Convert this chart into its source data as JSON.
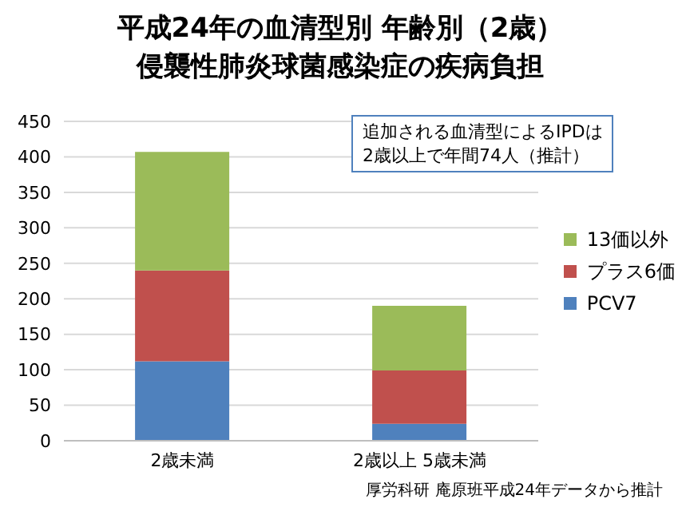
{
  "chart_data": {
    "type": "bar",
    "title": "平成24年の血清型別 年齢別（2歳）侵襲性肺炎球菌感染症の疾病負担",
    "categories": [
      "2歳未満",
      "2歳以上 5歳未満"
    ],
    "stacked": true,
    "series": [
      {
        "name": "PCV7",
        "color": "#4f81bd",
        "values": [
          112,
          24
        ]
      },
      {
        "name": "プラス6価",
        "color": "#c0504d",
        "values": [
          128,
          75
        ]
      },
      {
        "name": "13価以外",
        "color": "#9bbb59",
        "values": [
          167,
          91
        ]
      }
    ],
    "ylim": [
      0,
      450
    ],
    "yticks": [
      0,
      50,
      100,
      150,
      200,
      250,
      300,
      350,
      400,
      450
    ],
    "grid": "y",
    "legend": "right",
    "annotations": [
      "追加される血清型によるIPDは\n2歳以上で年間74人（推計）",
      "厚労科研 庵原班平成24年データから推計"
    ]
  }
}
